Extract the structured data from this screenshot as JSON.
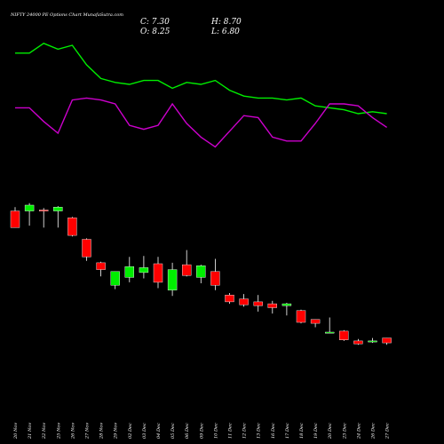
{
  "chart_data": {
    "type": "candlestick",
    "title": "NIFTY 24000 PE Options Chart MunafaSutra.com",
    "ohlc_summary": {
      "close": "C: 7.30",
      "open": "O: 8.25",
      "high": "H: 8.70",
      "low": "L: 6.80"
    },
    "categories": [
      "20 Nov",
      "21 Nov",
      "22 Nov",
      "25 Nov",
      "26 Nov",
      "27 Nov",
      "28 Nov",
      "29 Nov",
      "02 Dec",
      "03 Dec",
      "04 Dec",
      "05 Dec",
      "06 Dec",
      "09 Dec",
      "10 Dec",
      "11 Dec",
      "12 Dec",
      "13 Dec",
      "16 Dec",
      "17 Dec",
      "18 Dec",
      "19 Dec",
      "20 Dec",
      "23 Dec",
      "24 Dec",
      "26 Dec",
      "27 Dec"
    ],
    "price_range": [
      0,
      200
    ],
    "candles": [
      {
        "open": 184,
        "high": 188,
        "low": 167,
        "close": 167
      },
      {
        "open": 184,
        "high": 192,
        "low": 169,
        "close": 190
      },
      {
        "open": 185,
        "high": 187,
        "low": 167,
        "close": 184
      },
      {
        "open": 184,
        "high": 189,
        "low": 167,
        "close": 188
      },
      {
        "open": 177,
        "high": 178,
        "low": 158,
        "close": 159
      },
      {
        "open": 155,
        "high": 156,
        "low": 133,
        "close": 137
      },
      {
        "open": 131,
        "high": 132,
        "low": 117,
        "close": 124
      },
      {
        "open": 108,
        "high": 122,
        "low": 104,
        "close": 122
      },
      {
        "open": 116,
        "high": 137,
        "low": 111,
        "close": 127
      },
      {
        "open": 121,
        "high": 138,
        "low": 115,
        "close": 126
      },
      {
        "open": 130,
        "high": 137,
        "low": 105,
        "close": 111
      },
      {
        "open": 103,
        "high": 131,
        "low": 97,
        "close": 124
      },
      {
        "open": 129,
        "high": 144,
        "low": 117,
        "close": 118
      },
      {
        "open": 116,
        "high": 129,
        "low": 110,
        "close": 128
      },
      {
        "open": 122,
        "high": 135,
        "low": 103,
        "close": 108
      },
      {
        "open": 98,
        "high": 100,
        "low": 89,
        "close": 91
      },
      {
        "open": 94,
        "high": 99,
        "low": 86,
        "close": 88
      },
      {
        "open": 91,
        "high": 98,
        "low": 81,
        "close": 87
      },
      {
        "open": 89,
        "high": 92,
        "low": 79,
        "close": 85
      },
      {
        "open": 87,
        "high": 90,
        "low": 77,
        "close": 89
      },
      {
        "open": 82,
        "high": 83,
        "low": 69,
        "close": 70
      },
      {
        "open": 73,
        "high": 73,
        "low": 65,
        "close": 69
      },
      {
        "open": 59,
        "high": 75,
        "low": 59,
        "close": 60
      },
      {
        "open": 61,
        "high": 62,
        "low": 51,
        "close": 52
      },
      {
        "open": 51,
        "high": 53,
        "low": 47,
        "close": 48
      },
      {
        "open": 50,
        "high": 54,
        "low": 49,
        "close": 51
      },
      {
        "open": 54,
        "high": 54,
        "low": 47,
        "close": 49
      }
    ],
    "lines": [
      {
        "color": "#00ee00",
        "values": [
          91,
          91,
          96,
          93,
          95,
          85,
          78,
          76,
          75,
          77,
          77,
          73,
          76,
          75,
          77,
          72,
          69,
          68,
          68,
          67,
          68,
          64,
          63,
          62,
          60,
          61,
          60
        ]
      },
      {
        "color": "#cc00cc",
        "values": [
          63,
          63,
          56,
          50,
          67,
          68,
          67,
          65,
          54,
          52,
          54,
          65,
          55,
          48,
          43,
          51,
          59,
          58,
          48,
          46,
          46,
          55,
          65,
          65,
          64,
          58,
          53
        ]
      }
    ],
    "colors": {
      "up": "#00ee00",
      "down": "#ff0000",
      "background": "#000000",
      "text": "#ffffff"
    }
  }
}
